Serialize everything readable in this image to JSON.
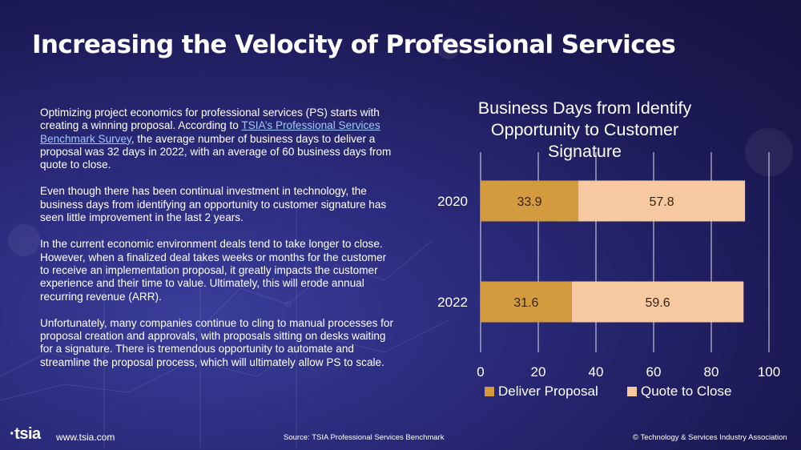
{
  "title": "Increasing the Velocity of Professional Services",
  "paragraphs": {
    "p1_before_link": "Optimizing project economics for professional services (PS) starts with creating a winning proposal. According to ",
    "p1_link": "TSIA’s Professional Services Benchmark Survey",
    "p1_after_link": ", the average number of business days to deliver a proposal was 32 days in 2022, with an average of 60 business days from quote to close.",
    "p2": "Even though there has been continual investment in technology, the business days from identifying an opportunity to customer signature has seen little improvement in the last 2 years.",
    "p3": "In the current economic environment deals tend to take longer to close. However, when a finalized deal takes weeks or months for the customer to receive an implementation proposal, it greatly impacts the customer experience and their time to value. Ultimately, this will erode annual recurring revenue (ARR).",
    "p4": "Unfortunately, many companies continue to cling to manual processes for proposal creation and approvals, with proposals sitting on desks waiting for a signature. There is tremendous opportunity to automate and streamline the proposal process, which will ultimately allow PS to scale."
  },
  "footer": {
    "logo": "tsia",
    "website": "www.tsia.com",
    "source": "Source: TSIA Professional Services Benchmark",
    "copyright": "© Technology & Services Industry Association"
  },
  "chart_data": {
    "type": "bar",
    "orientation": "horizontal",
    "stacked": true,
    "title": "Business Days from Identify Opportunity to Customer Signature",
    "categories": [
      "2020",
      "2022"
    ],
    "series": [
      {
        "name": "Deliver Proposal",
        "values": [
          33.9,
          31.6
        ],
        "color": "#d49a3e",
        "label_color": "#3a2510"
      },
      {
        "name": "Quote to Close",
        "values": [
          57.8,
          59.6
        ],
        "color": "#f7c9a0",
        "label_color": "#3a2510"
      }
    ],
    "xlim": [
      0,
      100
    ],
    "xticks": [
      "0",
      "20",
      "40",
      "60",
      "80",
      "100"
    ],
    "grid": true,
    "legend": "bottom"
  }
}
